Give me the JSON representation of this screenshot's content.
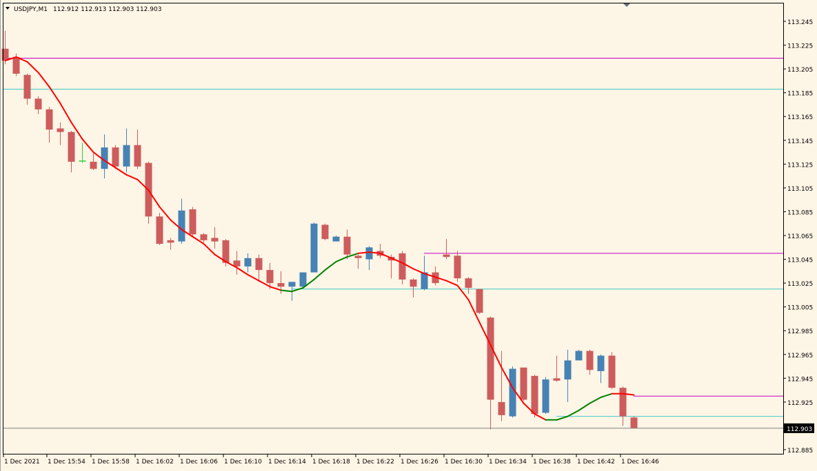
{
  "header": {
    "symbol": "USDJPY,M1",
    "ohlc": "112.912 112.913 112.903 112.903"
  },
  "colors": {
    "background": "#fdf5e6",
    "bull_candle": "#4682b4",
    "bear_candle": "#cd5c5c",
    "doji_candle": "#32cd32",
    "ma_down": "#ff0000",
    "ma_up": "#008000",
    "resistance_line": "#c000c0",
    "support_line": "#40c8c8",
    "current_price_line": "#808080"
  },
  "chart_data": {
    "type": "candlestick",
    "title": "USDJPY,M1",
    "ylim": [
      112.8825,
      113.2625
    ],
    "y_ticks": [
      "113.245",
      "113.225",
      "113.205",
      "113.185",
      "113.165",
      "113.145",
      "113.125",
      "113.105",
      "113.085",
      "113.065",
      "113.045",
      "113.025",
      "113.005",
      "112.985",
      "112.965",
      "112.945",
      "112.925",
      "112.905",
      "112.885"
    ],
    "x_labels": [
      "1 Dec 2021",
      "1 Dec 15:54",
      "1 Dec 15:58",
      "1 Dec 16:02",
      "1 Dec 16:06",
      "1 Dec 16:10",
      "1 Dec 16:14",
      "1 Dec 16:18",
      "1 Dec 16:22",
      "1 Dec 16:26",
      "1 Dec 16:30",
      "1 Dec 16:34",
      "1 Dec 16:38",
      "1 Dec 16:42",
      "1 Dec 16:46"
    ],
    "candles": [
      {
        "o": 113.222,
        "h": 113.237,
        "c": 113.212,
        "l": 113.209
      },
      {
        "o": 113.215,
        "h": 113.218,
        "c": 113.201,
        "l": 113.199
      },
      {
        "o": 113.2,
        "h": 113.201,
        "c": 113.18,
        "l": 113.175
      },
      {
        "o": 113.18,
        "h": 113.182,
        "c": 113.171,
        "l": 113.167
      },
      {
        "o": 113.171,
        "h": 113.173,
        "c": 113.154,
        "l": 113.143
      },
      {
        "o": 113.155,
        "h": 113.16,
        "c": 113.152,
        "l": 113.141
      },
      {
        "o": 113.152,
        "h": 113.153,
        "c": 113.127,
        "l": 113.118
      },
      {
        "o": 113.128,
        "h": 113.143,
        "c": 113.128,
        "l": 113.126
      },
      {
        "o": 113.127,
        "h": 113.134,
        "c": 113.121,
        "l": 113.12
      },
      {
        "o": 113.121,
        "h": 113.15,
        "c": 113.139,
        "l": 113.113
      },
      {
        "o": 113.139,
        "h": 113.141,
        "c": 113.123,
        "l": 113.121
      },
      {
        "o": 113.123,
        "h": 113.155,
        "c": 113.141,
        "l": 113.118
      },
      {
        "o": 113.141,
        "h": 113.154,
        "c": 113.123,
        "l": 113.121
      },
      {
        "o": 113.126,
        "h": 113.127,
        "c": 113.081,
        "l": 113.075
      },
      {
        "o": 113.081,
        "h": 113.084,
        "c": 113.058,
        "l": 113.057
      },
      {
        "o": 113.061,
        "h": 113.063,
        "c": 113.059,
        "l": 113.053
      },
      {
        "o": 113.06,
        "h": 113.096,
        "c": 113.086,
        "l": 113.058
      },
      {
        "o": 113.087,
        "h": 113.089,
        "c": 113.066,
        "l": 113.064
      },
      {
        "o": 113.066,
        "h": 113.067,
        "c": 113.061,
        "l": 113.059
      },
      {
        "o": 113.063,
        "h": 113.072,
        "c": 113.06,
        "l": 113.054
      },
      {
        "o": 113.061,
        "h": 113.062,
        "c": 113.042,
        "l": 113.039
      },
      {
        "o": 113.044,
        "h": 113.052,
        "c": 113.039,
        "l": 113.032
      },
      {
        "o": 113.039,
        "h": 113.05,
        "c": 113.046,
        "l": 113.034
      },
      {
        "o": 113.046,
        "h": 113.049,
        "c": 113.036,
        "l": 113.026
      },
      {
        "o": 113.036,
        "h": 113.042,
        "c": 113.025,
        "l": 113.02
      },
      {
        "o": 113.025,
        "h": 113.035,
        "c": 113.022,
        "l": 113.016
      },
      {
        "o": 113.022,
        "h": 113.026,
        "c": 113.026,
        "l": 113.01
      },
      {
        "o": 113.022,
        "h": 113.034,
        "c": 113.034,
        "l": 113.021
      },
      {
        "o": 113.034,
        "h": 113.076,
        "c": 113.075,
        "l": 113.034
      },
      {
        "o": 113.074,
        "h": 113.075,
        "c": 113.062,
        "l": 113.061
      },
      {
        "o": 113.06,
        "h": 113.065,
        "c": 113.064,
        "l": 113.06
      },
      {
        "o": 113.064,
        "h": 113.07,
        "c": 113.049,
        "l": 113.045
      },
      {
        "o": 113.048,
        "h": 113.049,
        "c": 113.046,
        "l": 113.037
      },
      {
        "o": 113.045,
        "h": 113.056,
        "c": 113.055,
        "l": 113.036
      },
      {
        "o": 113.052,
        "h": 113.058,
        "c": 113.048,
        "l": 113.046
      },
      {
        "o": 113.047,
        "h": 113.049,
        "c": 113.044,
        "l": 113.029
      },
      {
        "o": 113.05,
        "h": 113.052,
        "c": 113.028,
        "l": 113.024
      },
      {
        "o": 113.028,
        "h": 113.029,
        "c": 113.022,
        "l": 113.013
      },
      {
        "o": 113.02,
        "h": 113.048,
        "c": 113.034,
        "l": 113.019
      },
      {
        "o": 113.034,
        "h": 113.039,
        "c": 113.025,
        "l": 113.023
      },
      {
        "o": 113.049,
        "h": 113.062,
        "c": 113.047,
        "l": 113.045
      },
      {
        "o": 113.048,
        "h": 113.052,
        "c": 113.029,
        "l": 113.026
      },
      {
        "o": 113.029,
        "h": 113.03,
        "c": 113.021,
        "l": 113.016
      },
      {
        "o": 113.02,
        "h": 113.02,
        "c": 113.0,
        "l": 112.999
      },
      {
        "o": 112.996,
        "h": 112.997,
        "c": 112.927,
        "l": 112.902
      },
      {
        "o": 112.925,
        "h": 112.968,
        "c": 112.914,
        "l": 112.909
      },
      {
        "o": 112.913,
        "h": 112.955,
        "c": 112.953,
        "l": 112.912
      },
      {
        "o": 112.954,
        "h": 112.954,
        "c": 112.927,
        "l": 112.926
      },
      {
        "o": 112.947,
        "h": 112.948,
        "c": 112.915,
        "l": 112.912
      },
      {
        "o": 112.916,
        "h": 112.946,
        "c": 112.944,
        "l": 112.915
      },
      {
        "o": 112.945,
        "h": 112.964,
        "c": 112.943,
        "l": 112.942
      },
      {
        "o": 112.944,
        "h": 112.969,
        "c": 112.96,
        "l": 112.925
      },
      {
        "o": 112.96,
        "h": 112.969,
        "c": 112.968,
        "l": 112.96
      },
      {
        "o": 112.968,
        "h": 112.969,
        "c": 112.952,
        "l": 112.948
      },
      {
        "o": 112.951,
        "h": 112.965,
        "c": 112.964,
        "l": 112.941
      },
      {
        "o": 112.964,
        "h": 112.967,
        "c": 112.937,
        "l": 112.936
      },
      {
        "o": 112.937,
        "h": 112.938,
        "c": 112.913,
        "l": 112.905
      },
      {
        "o": 112.912,
        "h": 112.913,
        "c": 112.903,
        "l": 112.903
      }
    ],
    "moving_average": {
      "color_down": "#ff0000",
      "color_up": "#008000",
      "points": [
        {
          "i": 0,
          "v": 113.212,
          "d": "up"
        },
        {
          "i": 1,
          "v": 113.215,
          "d": "down"
        },
        {
          "i": 2,
          "v": 113.211,
          "d": "down"
        },
        {
          "i": 3,
          "v": 113.202,
          "d": "down"
        },
        {
          "i": 4,
          "v": 113.19,
          "d": "down"
        },
        {
          "i": 5,
          "v": 113.176,
          "d": "down"
        },
        {
          "i": 6,
          "v": 113.16,
          "d": "down"
        },
        {
          "i": 7,
          "v": 113.146,
          "d": "down"
        },
        {
          "i": 8,
          "v": 113.135,
          "d": "down"
        },
        {
          "i": 9,
          "v": 113.128,
          "d": "down"
        },
        {
          "i": 10,
          "v": 113.122,
          "d": "down"
        },
        {
          "i": 11,
          "v": 113.116,
          "d": "down"
        },
        {
          "i": 12,
          "v": 113.112,
          "d": "down"
        },
        {
          "i": 13,
          "v": 113.103,
          "d": "down"
        },
        {
          "i": 14,
          "v": 113.089,
          "d": "down"
        },
        {
          "i": 15,
          "v": 113.078,
          "d": "down"
        },
        {
          "i": 16,
          "v": 113.07,
          "d": "down"
        },
        {
          "i": 17,
          "v": 113.064,
          "d": "down"
        },
        {
          "i": 18,
          "v": 113.058,
          "d": "down"
        },
        {
          "i": 19,
          "v": 113.049,
          "d": "down"
        },
        {
          "i": 20,
          "v": 113.043,
          "d": "down"
        },
        {
          "i": 21,
          "v": 113.038,
          "d": "down"
        },
        {
          "i": 22,
          "v": 113.032,
          "d": "down"
        },
        {
          "i": 23,
          "v": 113.027,
          "d": "down"
        },
        {
          "i": 24,
          "v": 113.022,
          "d": "down"
        },
        {
          "i": 25,
          "v": 113.019,
          "d": "down"
        },
        {
          "i": 26,
          "v": 113.018,
          "d": "up"
        },
        {
          "i": 27,
          "v": 113.021,
          "d": "up"
        },
        {
          "i": 28,
          "v": 113.028,
          "d": "up"
        },
        {
          "i": 29,
          "v": 113.036,
          "d": "up"
        },
        {
          "i": 30,
          "v": 113.043,
          "d": "up"
        },
        {
          "i": 31,
          "v": 113.047,
          "d": "up"
        },
        {
          "i": 32,
          "v": 113.05,
          "d": "up"
        },
        {
          "i": 33,
          "v": 113.051,
          "d": "down"
        },
        {
          "i": 34,
          "v": 113.05,
          "d": "down"
        },
        {
          "i": 35,
          "v": 113.046,
          "d": "down"
        },
        {
          "i": 36,
          "v": 113.042,
          "d": "down"
        },
        {
          "i": 37,
          "v": 113.037,
          "d": "down"
        },
        {
          "i": 38,
          "v": 113.033,
          "d": "down"
        },
        {
          "i": 39,
          "v": 113.03,
          "d": "down"
        },
        {
          "i": 40,
          "v": 113.027,
          "d": "down"
        },
        {
          "i": 41,
          "v": 113.023,
          "d": "down"
        },
        {
          "i": 42,
          "v": 113.011,
          "d": "down"
        },
        {
          "i": 43,
          "v": 112.992,
          "d": "down"
        },
        {
          "i": 44,
          "v": 112.973,
          "d": "down"
        },
        {
          "i": 45,
          "v": 112.954,
          "d": "down"
        },
        {
          "i": 46,
          "v": 112.937,
          "d": "down"
        },
        {
          "i": 47,
          "v": 112.924,
          "d": "down"
        },
        {
          "i": 48,
          "v": 112.915,
          "d": "down"
        },
        {
          "i": 49,
          "v": 112.91,
          "d": "down"
        },
        {
          "i": 50,
          "v": 112.91,
          "d": "up"
        },
        {
          "i": 51,
          "v": 112.913,
          "d": "up"
        },
        {
          "i": 52,
          "v": 112.918,
          "d": "up"
        },
        {
          "i": 53,
          "v": 112.924,
          "d": "up"
        },
        {
          "i": 54,
          "v": 112.929,
          "d": "up"
        },
        {
          "i": 55,
          "v": 112.932,
          "d": "up"
        },
        {
          "i": 56,
          "v": 112.932,
          "d": "down"
        },
        {
          "i": 57,
          "v": 112.931,
          "d": "down"
        }
      ]
    },
    "levels": [
      {
        "value": 113.214,
        "from": -1,
        "to": "end",
        "color": "#c000c0"
      },
      {
        "value": 113.188,
        "from": -1,
        "to": "end",
        "color": "#40c8c8"
      },
      {
        "value": 113.05,
        "from": 38,
        "to": "end",
        "color": "#c000c0"
      },
      {
        "value": 113.02,
        "from": 26,
        "to": "end",
        "color": "#40c8c8"
      },
      {
        "value": 112.93,
        "from": 57,
        "to": "end",
        "color": "#c000c0"
      },
      {
        "value": 112.913,
        "from": 50,
        "to": "end",
        "color": "#40c8c8"
      }
    ],
    "current_price": "112.903",
    "current_price_value": 112.903
  }
}
